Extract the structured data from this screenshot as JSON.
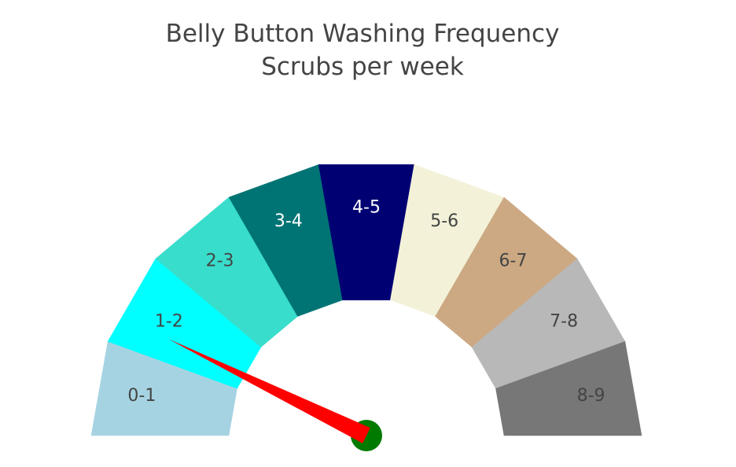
{
  "chart_data": {
    "type": "gauge",
    "title": "Belly Button Washing Frequency",
    "subtitle": "Scrubs per week",
    "range": [
      0,
      9
    ],
    "value": 1.3,
    "segments": [
      {
        "label": "0-1",
        "from": 0,
        "to": 1,
        "color": "#a6d3e2",
        "label_color": "#444444"
      },
      {
        "label": "1-2",
        "from": 1,
        "to": 2,
        "color": "#00ffff",
        "label_color": "#444444"
      },
      {
        "label": "2-3",
        "from": 2,
        "to": 3,
        "color": "#38ddcb",
        "label_color": "#444444"
      },
      {
        "label": "3-4",
        "from": 3,
        "to": 4,
        "color": "#007474",
        "label_color": "#ffffff"
      },
      {
        "label": "4-5",
        "from": 4,
        "to": 5,
        "color": "#000073",
        "label_color": "#ffffff"
      },
      {
        "label": "5-6",
        "from": 5,
        "to": 6,
        "color": "#f3f2d9",
        "label_color": "#444444"
      },
      {
        "label": "6-7",
        "from": 6,
        "to": 7,
        "color": "#cca983",
        "label_color": "#444444"
      },
      {
        "label": "7-8",
        "from": 7,
        "to": 8,
        "color": "#b8b8b8",
        "label_color": "#444444"
      },
      {
        "label": "8-9",
        "from": 8,
        "to": 9,
        "color": "#777777",
        "label_color": "#444444"
      }
    ],
    "needle_color": "#ff0000",
    "hub_color": "#007a00"
  }
}
